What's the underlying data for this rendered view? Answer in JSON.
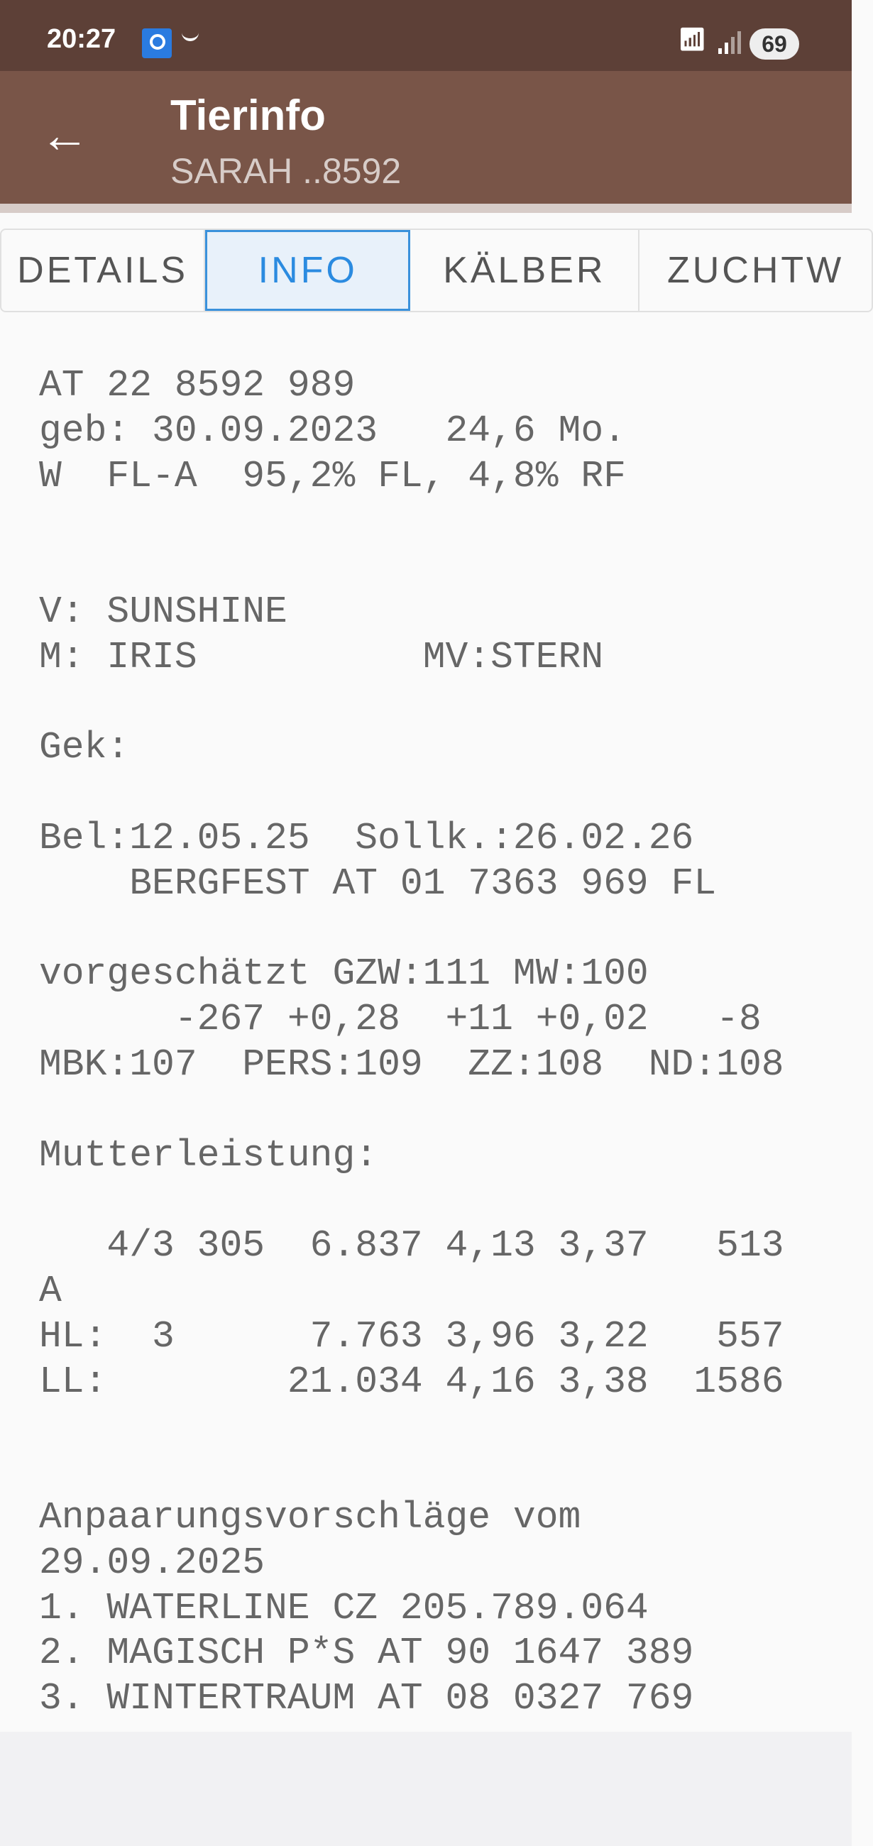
{
  "status_bar": {
    "time": "20:27",
    "battery": "69"
  },
  "app_bar": {
    "title": "Tierinfo",
    "subtitle": "SARAH ..8592"
  },
  "tabs": [
    {
      "label": "DETAILS",
      "active": false
    },
    {
      "label": "INFO",
      "active": true
    },
    {
      "label": "KÄLBER",
      "active": false
    },
    {
      "label": "ZUCHTW",
      "active": false
    }
  ],
  "accent_color": "#2b8be0",
  "header_color": "#795548",
  "info_lines": [
    "AT 22 8592 989",
    "geb: 30.09.2023   24,6 Mo.",
    "W  FL-A  95,2% FL, 4,8% RF",
    "",
    "",
    "V: SUNSHINE",
    "M: IRIS          MV:STERN",
    "",
    "Gek:",
    "",
    "Bel:12.05.25  Sollk.:26.02.26",
    "    BERGFEST AT 01 7363 969 FL",
    "",
    "vorgeschätzt GZW:111 MW:100",
    "      -267 +0,28  +11 +0,02   -8",
    "MBK:107  PERS:109  ZZ:108  ND:108",
    "",
    "Mutterleistung:",
    "",
    "   4/3 305  6.837 4,13 3,37   513",
    "A",
    "HL:  3      7.763 3,96 3,22   557",
    "LL:        21.034 4,16 3,38  1586",
    "",
    "",
    "Anpaarungsvorschläge vom",
    "29.09.2025",
    "1. WATERLINE CZ 205.789.064",
    "2. MAGISCH P*S AT 90 1647 389",
    "3. WINTERTRAUM AT 08 0327 769"
  ]
}
